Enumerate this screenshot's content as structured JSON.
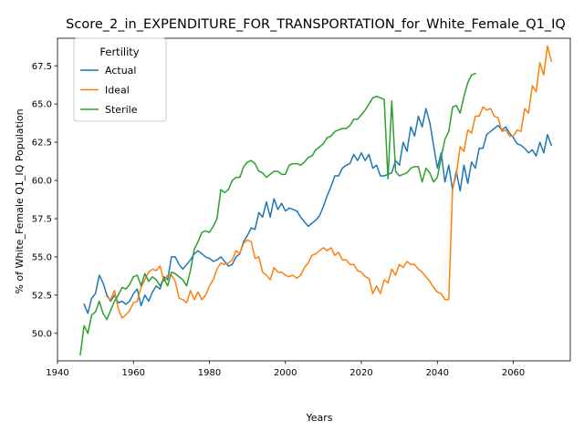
{
  "chart_data": {
    "type": "line",
    "title": "Score_2_in_EXPENDITURE_FOR_TRANSPORTATION_for_White_Female_Q1_IQ",
    "xlabel": "Years",
    "ylabel": "% of White_Female Q1_IQ Population",
    "xlim": [
      1940,
      2075
    ],
    "ylim": [
      48.2,
      69.3
    ],
    "x_ticks": [
      1940,
      1960,
      1980,
      2000,
      2020,
      2040,
      2060
    ],
    "y_ticks": [
      50.0,
      52.5,
      55.0,
      57.5,
      60.0,
      62.5,
      65.0,
      67.5
    ],
    "grid": false,
    "legend": {
      "title": "Fertility",
      "placement": "upper-left"
    },
    "colors": {
      "Actual": "#1f77b4",
      "Ideal": "#ff7f0e",
      "Sterile": "#2ca02c"
    },
    "series": [
      {
        "name": "Actual",
        "x": [
          1947,
          1948,
          1949,
          1950,
          1951,
          1952,
          1953,
          1954,
          1955,
          1956,
          1957,
          1958,
          1959,
          1960,
          1961,
          1962,
          1963,
          1964,
          1965,
          1966,
          1967,
          1968,
          1969,
          1970,
          1971,
          1972,
          1973,
          1974,
          1975,
          1976,
          1977,
          1978,
          1979,
          1980,
          1981,
          1982,
          1983,
          1984,
          1985,
          1986,
          1987,
          1988,
          1989,
          1990,
          1991,
          1992,
          1993,
          1994,
          1995,
          1996,
          1997,
          1998,
          1999,
          2000,
          2001,
          2002,
          2003,
          2004,
          2005,
          2006,
          2007,
          2008,
          2009,
          2010,
          2011,
          2012,
          2013,
          2014,
          2015,
          2016,
          2017,
          2018,
          2019,
          2020,
          2021,
          2022,
          2023,
          2024,
          2025,
          2026,
          2027,
          2028,
          2029,
          2030,
          2031,
          2032,
          2033,
          2034,
          2035,
          2036,
          2037,
          2038,
          2039,
          2040,
          2041,
          2042,
          2043,
          2044,
          2045,
          2046,
          2047,
          2048,
          2049,
          2050,
          2051,
          2052,
          2053,
          2054,
          2055,
          2056,
          2057,
          2058,
          2059,
          2060,
          2061,
          2062,
          2063,
          2064,
          2065,
          2066,
          2067,
          2068,
          2069,
          2070
        ],
        "y": [
          51.9,
          51.3,
          52.3,
          52.6,
          53.8,
          53.3,
          52.5,
          52.1,
          52.5,
          52.0,
          52.1,
          51.9,
          52.1,
          52.6,
          52.9,
          51.8,
          52.5,
          52.1,
          52.7,
          53.1,
          52.9,
          53.7,
          53.5,
          55.0,
          55.0,
          54.5,
          54.2,
          54.5,
          54.8,
          55.2,
          55.4,
          55.2,
          55.0,
          54.9,
          54.7,
          54.8,
          55.0,
          54.7,
          54.4,
          54.5,
          55.0,
          55.2,
          56.0,
          56.4,
          56.9,
          56.8,
          57.9,
          57.6,
          58.6,
          57.6,
          58.8,
          58.1,
          58.5,
          58.0,
          58.2,
          58.1,
          58.0,
          57.6,
          57.3,
          57.0,
          57.2,
          57.4,
          57.7,
          58.3,
          59.0,
          59.6,
          60.3,
          60.3,
          60.8,
          61.0,
          61.1,
          61.7,
          61.3,
          61.8,
          61.3,
          61.7,
          60.8,
          61.0,
          60.3,
          60.3,
          60.4,
          60.5,
          61.3,
          61.0,
          62.5,
          61.9,
          63.5,
          62.9,
          64.2,
          63.5,
          64.7,
          63.8,
          62.3,
          60.8,
          61.8,
          59.9,
          61.0,
          59.4,
          60.6,
          59.3,
          61.0,
          59.8,
          61.2,
          60.8,
          62.1,
          62.1,
          63.0,
          63.2,
          63.4,
          63.6,
          63.3,
          63.5,
          63.1,
          62.8,
          62.4,
          62.3,
          62.1,
          61.8,
          62.0,
          61.6,
          62.5,
          61.8,
          63.0,
          62.3
        ]
      },
      {
        "name": "Ideal",
        "x": [
          1953,
          1954,
          1955,
          1956,
          1957,
          1958,
          1959,
          1960,
          1961,
          1962,
          1963,
          1964,
          1965,
          1966,
          1967,
          1968,
          1969,
          1970,
          1971,
          1972,
          1973,
          1974,
          1975,
          1976,
          1977,
          1978,
          1979,
          1980,
          1981,
          1982,
          1983,
          1984,
          1985,
          1986,
          1987,
          1988,
          1989,
          1990,
          1991,
          1992,
          1993,
          1994,
          1995,
          1996,
          1997,
          1998,
          1999,
          2000,
          2001,
          2002,
          2003,
          2004,
          2005,
          2006,
          2007,
          2008,
          2009,
          2010,
          2011,
          2012,
          2013,
          2014,
          2015,
          2016,
          2017,
          2018,
          2019,
          2020,
          2021,
          2022,
          2023,
          2024,
          2025,
          2026,
          2027,
          2028,
          2029,
          2030,
          2031,
          2032,
          2033,
          2034,
          2035,
          2036,
          2037,
          2038,
          2039,
          2040,
          2041,
          2042,
          2043,
          2044,
          2045,
          2046,
          2047,
          2048,
          2049,
          2050,
          2051,
          2052,
          2053,
          2054,
          2055,
          2056,
          2057,
          2058,
          2059,
          2060,
          2061,
          2062,
          2063,
          2064,
          2065,
          2066,
          2067,
          2068,
          2069,
          2070
        ],
        "y": [
          52.4,
          52.2,
          52.8,
          51.6,
          51.0,
          51.2,
          51.5,
          52.0,
          52.1,
          53.0,
          53.5,
          54.0,
          54.2,
          54.1,
          54.4,
          53.4,
          53.8,
          53.8,
          53.4,
          52.3,
          52.2,
          52.0,
          52.8,
          52.2,
          52.7,
          52.2,
          52.5,
          53.1,
          53.5,
          54.2,
          54.6,
          54.5,
          54.6,
          54.8,
          55.4,
          55.2,
          55.9,
          56.1,
          56.0,
          54.9,
          55.0,
          54.0,
          53.8,
          53.5,
          54.3,
          54.0,
          54.0,
          53.8,
          53.7,
          53.8,
          53.6,
          53.8,
          54.3,
          54.6,
          55.1,
          55.2,
          55.4,
          55.6,
          55.4,
          55.6,
          55.1,
          55.3,
          54.8,
          54.8,
          54.5,
          54.5,
          54.1,
          54.0,
          53.7,
          53.6,
          52.6,
          53.1,
          52.6,
          53.5,
          53.3,
          54.2,
          53.8,
          54.5,
          54.3,
          54.7,
          54.5,
          54.5,
          54.2,
          54.0,
          53.7,
          53.4,
          53.0,
          52.7,
          52.6,
          52.2,
          52.2,
          59.4,
          60.4,
          62.2,
          61.9,
          63.3,
          63.1,
          64.2,
          64.2,
          64.8,
          64.6,
          64.7,
          64.2,
          64.1,
          63.2,
          63.3,
          62.9,
          62.9,
          63.3,
          63.2,
          64.7,
          64.4,
          66.2,
          65.8,
          67.7,
          66.9,
          68.8,
          67.8
        ]
      },
      {
        "name": "Sterile",
        "x": [
          1946,
          1947,
          1948,
          1949,
          1950,
          1951,
          1952,
          1953,
          1954,
          1955,
          1956,
          1957,
          1958,
          1959,
          1960,
          1961,
          1962,
          1963,
          1964,
          1965,
          1966,
          1967,
          1968,
          1969,
          1970,
          1971,
          1972,
          1973,
          1974,
          1975,
          1976,
          1977,
          1978,
          1979,
          1980,
          1981,
          1982,
          1983,
          1984,
          1985,
          1986,
          1987,
          1988,
          1989,
          1990,
          1991,
          1992,
          1993,
          1994,
          1995,
          1996,
          1997,
          1998,
          1999,
          2000,
          2001,
          2002,
          2003,
          2004,
          2005,
          2006,
          2007,
          2008,
          2009,
          2010,
          2011,
          2012,
          2013,
          2014,
          2015,
          2016,
          2017,
          2018,
          2019,
          2020,
          2021,
          2022,
          2023,
          2024,
          2025,
          2026,
          2027,
          2028,
          2029,
          2030,
          2031,
          2032,
          2033,
          2034,
          2035,
          2036,
          2037,
          2038,
          2039,
          2040,
          2041,
          2042,
          2043,
          2044,
          2045,
          2046,
          2047,
          2048,
          2049,
          2050
        ],
        "y": [
          48.6,
          50.5,
          50.0,
          51.2,
          51.4,
          52.1,
          51.3,
          50.9,
          51.5,
          52.1,
          52.5,
          53.0,
          52.9,
          53.2,
          53.7,
          53.8,
          53.1,
          53.9,
          53.4,
          53.7,
          53.5,
          53.1,
          53.6,
          53.1,
          54.0,
          53.9,
          53.7,
          53.5,
          53.1,
          54.1,
          55.5,
          56.0,
          56.6,
          56.7,
          56.6,
          57.0,
          57.5,
          59.4,
          59.2,
          59.4,
          60.0,
          60.2,
          60.2,
          60.9,
          61.2,
          61.3,
          61.1,
          60.6,
          60.5,
          60.2,
          60.4,
          60.6,
          60.6,
          60.4,
          60.4,
          61.0,
          61.1,
          61.1,
          61.0,
          61.2,
          61.5,
          61.6,
          62.0,
          62.2,
          62.4,
          62.8,
          62.9,
          63.2,
          63.3,
          63.4,
          63.4,
          63.6,
          64.0,
          64.0,
          64.3,
          64.6,
          65.0,
          65.4,
          65.5,
          65.4,
          65.3,
          60.1,
          65.2,
          60.6,
          60.3,
          60.4,
          60.5,
          60.8,
          60.9,
          60.9,
          59.9,
          60.8,
          60.5,
          59.9,
          60.2,
          61.5,
          62.7,
          63.2,
          64.8,
          64.9,
          64.4,
          65.5,
          66.4,
          66.9,
          67.0
        ]
      }
    ]
  }
}
